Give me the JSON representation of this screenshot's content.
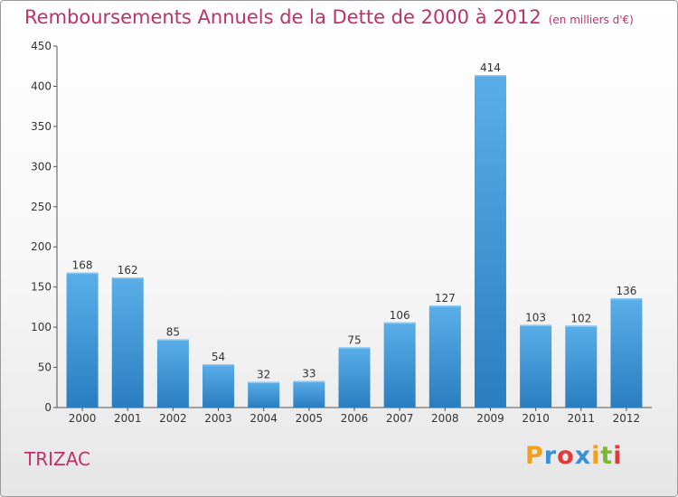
{
  "header": {
    "title": "Remboursements Annuels de la Dette de 2000 à 2012",
    "unit": "(en milliers d'€)"
  },
  "footer": {
    "commune": "TRIZAC"
  },
  "logo": {
    "text": "Proxiti",
    "colors": [
      "#f0a020",
      "#3a8fd8",
      "#e23a3a",
      "#3a8fd8",
      "#f0a020",
      "#7ab82e",
      "#e23a3a"
    ]
  },
  "chart_data": {
    "type": "bar",
    "categories": [
      "2000",
      "2001",
      "2002",
      "2003",
      "2004",
      "2005",
      "2006",
      "2007",
      "2008",
      "2009",
      "2010",
      "2011",
      "2012"
    ],
    "values": [
      168,
      162,
      85,
      54,
      32,
      33,
      75,
      106,
      127,
      414,
      103,
      102,
      136
    ],
    "ylim": [
      0,
      450
    ],
    "yticks": [
      0,
      50,
      100,
      150,
      200,
      250,
      300,
      350,
      400,
      450
    ],
    "grid": false,
    "bar_color_light": "#5aaee8",
    "bar_color_dark": "#2a7ec0"
  }
}
